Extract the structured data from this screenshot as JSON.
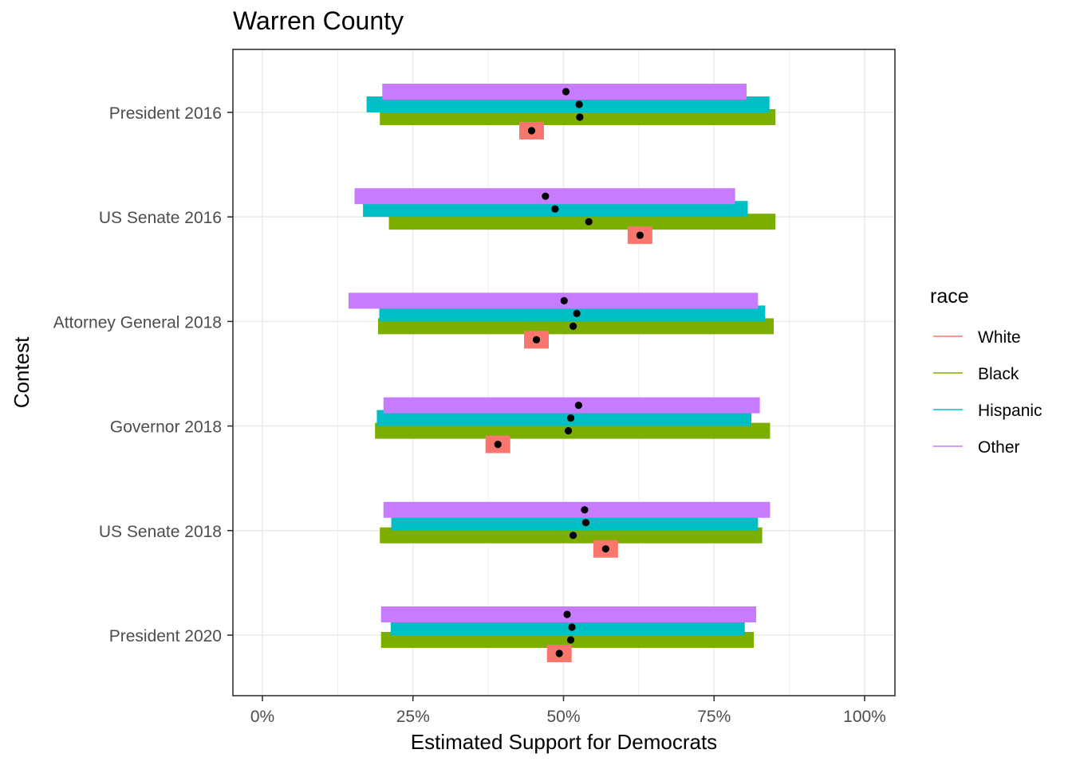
{
  "title": "Warren County",
  "chart_data": {
    "type": "bar",
    "title": "Warren County",
    "xlabel": "Estimated Support for Democrats",
    "ylabel": "Contest",
    "xlim": [
      0,
      1
    ],
    "x_ticks": [
      "0%",
      "25%",
      "50%",
      "75%",
      "100%"
    ],
    "grid": true,
    "legend_title": "race",
    "legend_position": "right",
    "categories": [
      "President 2016",
      "US Senate 2016",
      "Attorney General 2018",
      "Governor 2018",
      "US Senate 2018",
      "President 2020"
    ],
    "series": [
      {
        "name": "White",
        "color": "#F8766D",
        "low": [
          0.427,
          0.607,
          0.431,
          0.372,
          0.55,
          0.477
        ],
        "high": [
          0.467,
          0.649,
          0.477,
          0.412,
          0.592,
          0.515
        ],
        "estimate": [
          0.447,
          0.627,
          0.455,
          0.391,
          0.57,
          0.493
        ]
      },
      {
        "name": "Black",
        "color": "#7CAE00",
        "low": [
          0.195,
          0.21,
          0.192,
          0.187,
          0.195,
          0.197
        ],
        "high": [
          0.852,
          0.852,
          0.849,
          0.843,
          0.83,
          0.816
        ],
        "estimate": [
          0.527,
          0.542,
          0.516,
          0.508,
          0.516,
          0.512
        ]
      },
      {
        "name": "Hispanic",
        "color": "#00BFC4",
        "low": [
          0.173,
          0.167,
          0.194,
          0.19,
          0.214,
          0.213
        ],
        "high": [
          0.842,
          0.806,
          0.835,
          0.812,
          0.823,
          0.801
        ],
        "estimate": [
          0.526,
          0.486,
          0.522,
          0.512,
          0.537,
          0.514
        ]
      },
      {
        "name": "Other",
        "color": "#C77CFF",
        "low": [
          0.199,
          0.153,
          0.143,
          0.201,
          0.201,
          0.197
        ],
        "high": [
          0.804,
          0.785,
          0.823,
          0.826,
          0.843,
          0.82
        ],
        "estimate": [
          0.504,
          0.47,
          0.501,
          0.525,
          0.535,
          0.506
        ]
      }
    ]
  }
}
